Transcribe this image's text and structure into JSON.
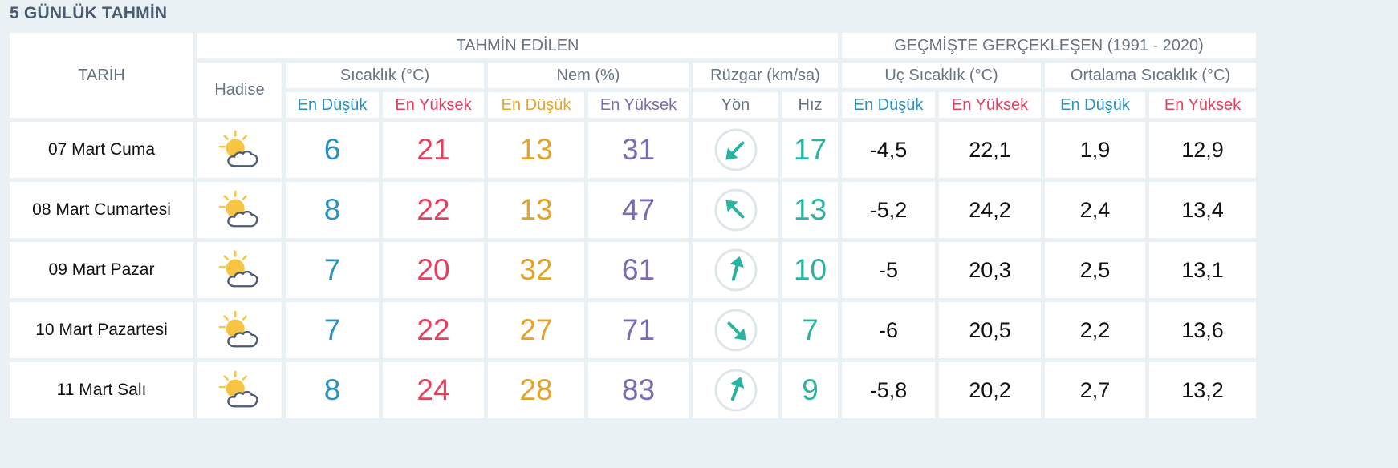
{
  "title": "5 GÜNLÜK TAHMİN",
  "headers": {
    "tarih": "TARİH",
    "tahmin_edilen": "TAHMİN EDİLEN",
    "gecmiste": "GEÇMİŞTE GERÇEKLEŞEN (1991 - 2020)",
    "hadise": "Hadise",
    "sicaklik": "Sıcaklık (°C)",
    "nem": "Nem (%)",
    "ruzgar": "Rüzgar (km/sa)",
    "uc_sicaklik": "Uç Sıcaklık (°C)",
    "ortalama_sicaklik": "Ortalama Sıcaklık (°C)",
    "en_dusuk": "En Düşük",
    "en_yuksek": "En Yüksek",
    "yon": "Yön",
    "hiz": "Hız"
  },
  "colors": {
    "low": "#2a92c0",
    "high": "#e4405e",
    "humidity_low": "#e3a427",
    "humidity_high": "#7b6bb3",
    "wind": "#2ab3a0",
    "header_text": "#697483",
    "sun": "#f7c544",
    "cloud_outline": "#4b5b70"
  },
  "rows": [
    {
      "date": "07 Mart Cuma",
      "icon": "partly-cloudy-icon",
      "temp_low": "6",
      "temp_high": "21",
      "hum_low": "13",
      "hum_high": "31",
      "wind_dir_deg": 225,
      "wind_speed": "17",
      "extreme_low": "-4,5",
      "extreme_high": "22,1",
      "avg_low": "1,9",
      "avg_high": "12,9"
    },
    {
      "date": "08 Mart Cumartesi",
      "icon": "partly-cloudy-icon",
      "temp_low": "8",
      "temp_high": "22",
      "hum_low": "13",
      "hum_high": "47",
      "wind_dir_deg": 315,
      "wind_speed": "13",
      "extreme_low": "-5,2",
      "extreme_high": "24,2",
      "avg_low": "2,4",
      "avg_high": "13,4"
    },
    {
      "date": "09 Mart Pazar",
      "icon": "partly-cloudy-icon",
      "temp_low": "7",
      "temp_high": "20",
      "hum_low": "32",
      "hum_high": "61",
      "wind_dir_deg": 15,
      "wind_speed": "10",
      "extreme_low": "-5",
      "extreme_high": "20,3",
      "avg_low": "2,5",
      "avg_high": "13,1"
    },
    {
      "date": "10 Mart Pazartesi",
      "icon": "partly-cloudy-icon",
      "temp_low": "7",
      "temp_high": "22",
      "hum_low": "27",
      "hum_high": "71",
      "wind_dir_deg": 135,
      "wind_speed": "7",
      "extreme_low": "-6",
      "extreme_high": "20,5",
      "avg_low": "2,2",
      "avg_high": "13,6"
    },
    {
      "date": "11 Mart Salı",
      "icon": "partly-cloudy-icon",
      "temp_low": "8",
      "temp_high": "24",
      "hum_low": "28",
      "hum_high": "83",
      "wind_dir_deg": 20,
      "wind_speed": "9",
      "extreme_low": "-5,8",
      "extreme_high": "20,2",
      "avg_low": "2,7",
      "avg_high": "13,2"
    }
  ]
}
